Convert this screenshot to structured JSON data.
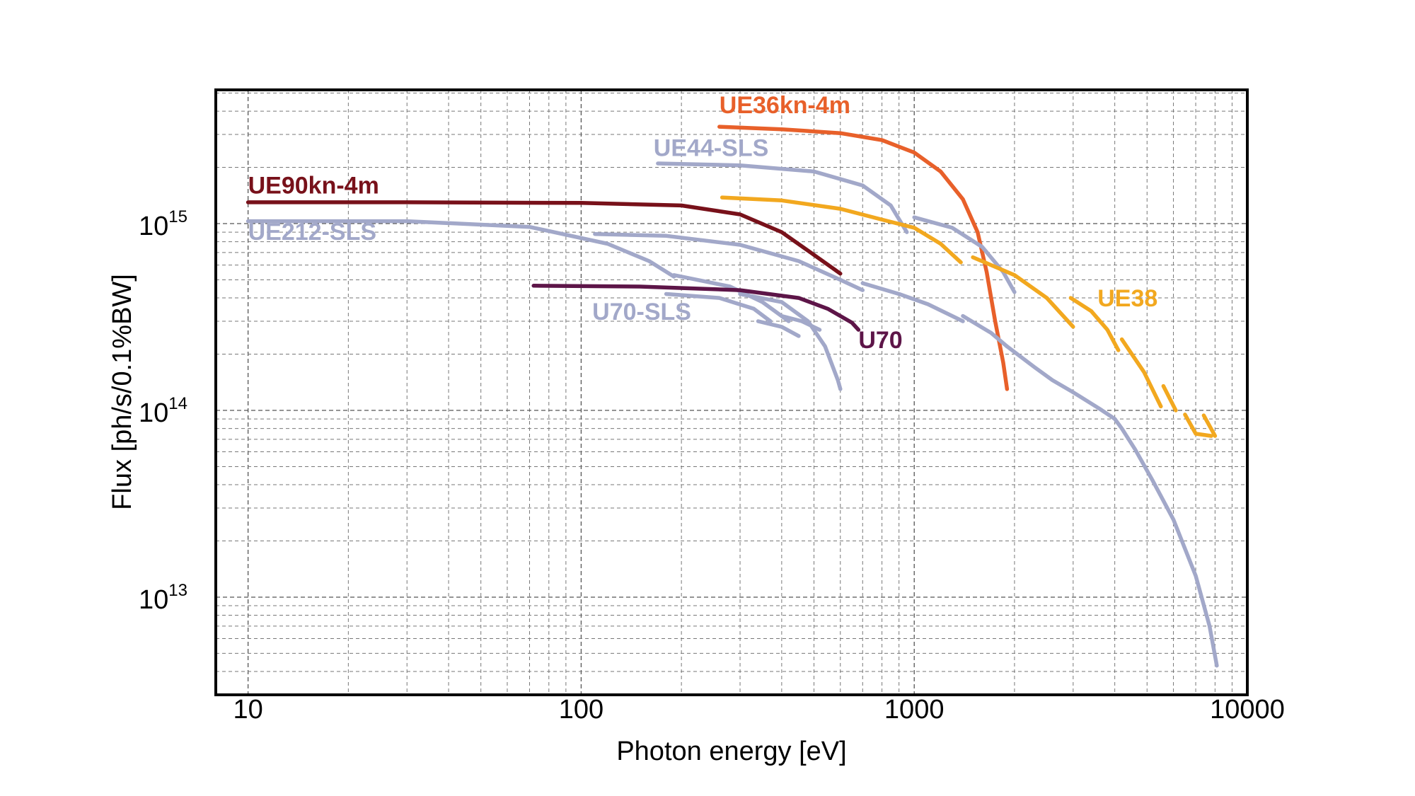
{
  "chart_data": {
    "type": "line",
    "title": "",
    "xlabel": "Photon energy [eV]",
    "ylabel": "Flux [ph/s/0.1%BW]",
    "x_scale": "log",
    "y_scale": "log",
    "xlim": [
      8,
      10000
    ],
    "ylim": [
      3000000000000.0,
      5200000000000000.0
    ],
    "grid": true,
    "x_ticks": [
      {
        "value": 10,
        "label": "10"
      },
      {
        "value": 100,
        "label": "100"
      },
      {
        "value": 1000,
        "label": "1000"
      },
      {
        "value": 10000,
        "label": "10000"
      }
    ],
    "y_ticks": [
      {
        "value": 10000000000000.0,
        "base": "10",
        "exp": "13"
      },
      {
        "value": 100000000000000.0,
        "base": "10",
        "exp": "14"
      },
      {
        "value": 1000000000000000.0,
        "base": "10",
        "exp": "15"
      }
    ],
    "series": [
      {
        "name": "UE36kn-4m",
        "color": "#e8602a",
        "label_at": [
          260,
          3900000000000000.0
        ],
        "segments": [
          [
            [
              260,
              3300000000000000.0
            ],
            [
              400,
              3200000000000000.0
            ],
            [
              600,
              3050000000000000.0
            ],
            [
              800,
              2800000000000000.0
            ],
            [
              1000,
              2400000000000000.0
            ],
            [
              1200,
              1900000000000000.0
            ],
            [
              1400,
              1350000000000000.0
            ],
            [
              1550,
              900000000000000.0
            ],
            [
              1650,
              550000000000000.0
            ],
            [
              1750,
              300000000000000.0
            ],
            [
              1850,
              180000000000000.0
            ],
            [
              1900,
              130000000000000.0
            ]
          ]
        ]
      },
      {
        "name": "UE44-SLS",
        "color": "#a2a8c9",
        "label_at": [
          165,
          2300000000000000.0
        ],
        "segments": [
          [
            [
              170,
              2100000000000000.0
            ],
            [
              300,
              2050000000000000.0
            ],
            [
              500,
              1900000000000000.0
            ],
            [
              700,
              1600000000000000.0
            ],
            [
              850,
              1250000000000000.0
            ],
            [
              950,
              900000000000000.0
            ]
          ],
          [
            [
              1000,
              1080000000000000.0
            ],
            [
              1300,
              950000000000000.0
            ],
            [
              1600,
              750000000000000.0
            ],
            [
              1850,
              550000000000000.0
            ],
            [
              2000,
              430000000000000.0
            ]
          ]
        ]
      },
      {
        "name": "UE90kn-4m",
        "color": "#78111a",
        "label_at": [
          10,
          1450000000000000.0
        ],
        "segments": [
          [
            [
              10,
              1300000000000000.0
            ],
            [
              30,
              1300000000000000.0
            ],
            [
              100,
              1290000000000000.0
            ],
            [
              200,
              1250000000000000.0
            ],
            [
              300,
              1120000000000000.0
            ],
            [
              400,
              900000000000000.0
            ],
            [
              500,
              680000000000000.0
            ],
            [
              600,
              540000000000000.0
            ]
          ]
        ]
      },
      {
        "name": "UE212-SLS",
        "color": "#a2a8c9",
        "label_at": [
          10,
          820000000000000.0
        ],
        "segments": [
          [
            [
              10,
              1030000000000000.0
            ],
            [
              30,
              1030000000000000.0
            ],
            [
              70,
              960000000000000.0
            ],
            [
              120,
              780000000000000.0
            ],
            [
              160,
              630000000000000.0
            ],
            [
              190,
              520000000000000.0
            ]
          ],
          [
            [
              110,
              880000000000000.0
            ],
            [
              180,
              860000000000000.0
            ],
            [
              300,
              770000000000000.0
            ],
            [
              450,
              630000000000000.0
            ],
            [
              600,
              500000000000000.0
            ],
            [
              700,
              440000000000000.0
            ]
          ],
          [
            [
              190,
              530000000000000.0
            ],
            [
              280,
              460000000000000.0
            ],
            [
              350,
              380000000000000.0
            ],
            [
              420,
              300000000000000.0
            ]
          ],
          [
            [
              700,
              480000000000000.0
            ],
            [
              900,
              420000000000000.0
            ],
            [
              1100,
              370000000000000.0
            ],
            [
              1300,
              320000000000000.0
            ],
            [
              1400,
              300000000000000.0
            ]
          ],
          [
            [
              1400,
              320000000000000.0
            ],
            [
              1700,
              260000000000000.0
            ],
            [
              1900,
              220000000000000.0
            ]
          ],
          [
            [
              1900,
              220000000000000.0
            ],
            [
              2300,
              170000000000000.0
            ],
            [
              2600,
              145000000000000.0
            ],
            [
              3000,
              125000000000000.0
            ]
          ],
          [
            [
              3000,
              125000000000000.0
            ],
            [
              3600,
              102000000000000.0
            ],
            [
              4000,
              90000000000000.0
            ],
            [
              4200,
              80000000000000.0
            ],
            [
              4600,
              62000000000000.0
            ],
            [
              5200,
              42000000000000.0
            ],
            [
              6000,
              26000000000000.0
            ],
            [
              7000,
              13000000000000.0
            ],
            [
              7700,
              7000000000000.0
            ],
            [
              8100,
              4300000000000.0
            ]
          ]
        ]
      },
      {
        "name": "UE38",
        "color": "#f2a81f",
        "label_at": [
          3550,
          360000000000000.0
        ],
        "segments": [
          [
            [
              265,
              1380000000000000.0
            ],
            [
              400,
              1330000000000000.0
            ],
            [
              600,
              1200000000000000.0
            ],
            [
              800,
              1050000000000000.0
            ],
            [
              1000,
              950000000000000.0
            ],
            [
              1200,
              780000000000000.0
            ],
            [
              1380,
              620000000000000.0
            ]
          ],
          [
            [
              1500,
              660000000000000.0
            ],
            [
              2000,
              530000000000000.0
            ],
            [
              2500,
              400000000000000.0
            ],
            [
              3000,
              280000000000000.0
            ]
          ],
          [
            [
              2950,
              400000000000000.0
            ],
            [
              3400,
              340000000000000.0
            ],
            [
              3800,
              270000000000000.0
            ],
            [
              4100,
              210000000000000.0
            ]
          ],
          [
            [
              4200,
              240000000000000.0
            ],
            [
              4900,
              160000000000000.0
            ],
            [
              5500,
              105000000000000.0
            ]
          ],
          [
            [
              5600,
              135000000000000.0
            ],
            [
              6100,
              100000000000000.0
            ]
          ],
          [
            [
              6500,
              95000000000000.0
            ],
            [
              7000,
              75000000000000.0
            ],
            [
              7800,
              73000000000000.0
            ]
          ],
          [
            [
              7400,
              94000000000000.0
            ],
            [
              8000,
              73000000000000.0
            ]
          ]
        ]
      },
      {
        "name": "U70-SLS",
        "color": "#a2a8c9",
        "label_at": [
          108,
          305000000000000.0
        ],
        "segments": [
          [
            [
              180,
              420000000000000.0
            ],
            [
              260,
              400000000000000.0
            ],
            [
              330,
              350000000000000.0
            ],
            [
              370,
              300000000000000.0
            ]
          ],
          [
            [
              340,
              300000000000000.0
            ],
            [
              400,
              280000000000000.0
            ],
            [
              450,
              250000000000000.0
            ]
          ],
          [
            [
              400,
              320000000000000.0
            ],
            [
              460,
              300000000000000.0
            ],
            [
              520,
              270000000000000.0
            ]
          ],
          [
            [
              300,
              420000000000000.0
            ],
            [
              400,
              380000000000000.0
            ],
            [
              480,
              300000000000000.0
            ],
            [
              540,
              220000000000000.0
            ],
            [
              590,
              145000000000000.0
            ],
            [
              600,
              130000000000000.0
            ]
          ]
        ]
      },
      {
        "name": "U70",
        "color": "#5d1548",
        "label_at": [
          680,
          215000000000000.0
        ],
        "segments": [
          [
            [
              72,
              465000000000000.0
            ],
            [
              150,
              460000000000000.0
            ],
            [
              300,
              440000000000000.0
            ],
            [
              450,
              400000000000000.0
            ],
            [
              550,
              350000000000000.0
            ],
            [
              650,
              295000000000000.0
            ],
            [
              680,
              270000000000000.0
            ]
          ]
        ]
      }
    ]
  }
}
